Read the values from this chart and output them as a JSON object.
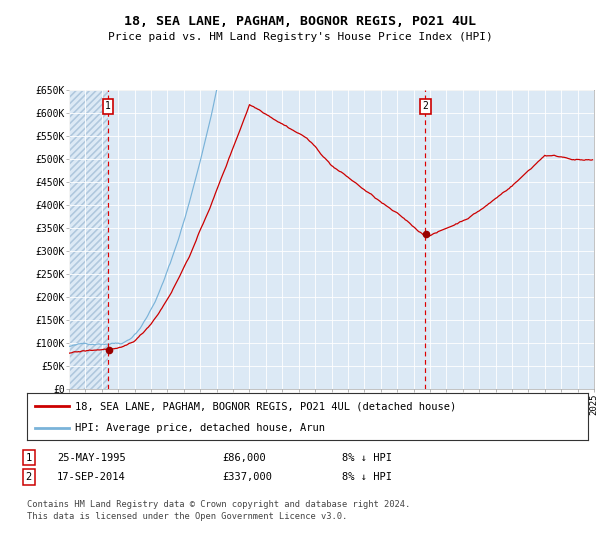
{
  "title": "18, SEA LANE, PAGHAM, BOGNOR REGIS, PO21 4UL",
  "subtitle": "Price paid vs. HM Land Registry's House Price Index (HPI)",
  "fig_bg_color": "#ffffff",
  "plot_bg_color": "#dce9f5",
  "hpi_color": "#7ab3d9",
  "price_color": "#cc0000",
  "marker_color": "#990000",
  "dashed_line_color": "#dd0000",
  "hatch_color": "#c0d4e8",
  "sale1_year": 1995.38,
  "sale1_price": 86000,
  "sale2_year": 2014.71,
  "sale2_price": 337000,
  "xmin": 1993,
  "xmax": 2025,
  "ymin": 0,
  "ymax": 650000,
  "ytick_vals": [
    0,
    50000,
    100000,
    150000,
    200000,
    250000,
    300000,
    350000,
    400000,
    450000,
    500000,
    550000,
    600000,
    650000
  ],
  "ytick_labels": [
    "£0",
    "£50K",
    "£100K",
    "£150K",
    "£200K",
    "£250K",
    "£300K",
    "£350K",
    "£400K",
    "£450K",
    "£500K",
    "£550K",
    "£600K",
    "£650K"
  ],
  "legend_line1": "18, SEA LANE, PAGHAM, BOGNOR REGIS, PO21 4UL (detached house)",
  "legend_line2": "HPI: Average price, detached house, Arun",
  "table_row1_num": "1",
  "table_row1_date": "25-MAY-1995",
  "table_row1_price": "£86,000",
  "table_row1_hpi": "8% ↓ HPI",
  "table_row2_num": "2",
  "table_row2_date": "17-SEP-2014",
  "table_row2_price": "£337,000",
  "table_row2_hpi": "8% ↓ HPI",
  "footer_line1": "Contains HM Land Registry data © Crown copyright and database right 2024.",
  "footer_line2": "This data is licensed under the Open Government Licence v3.0."
}
